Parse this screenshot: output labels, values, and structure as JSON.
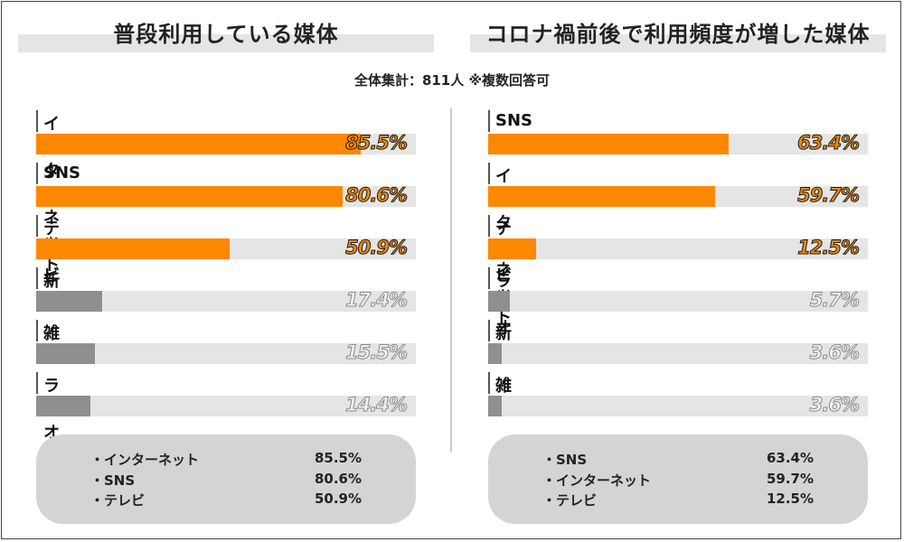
{
  "subtitle": "全体集計：811人 ※複数回答可",
  "colors": {
    "highlight": "#fc8700",
    "muted": "#8f8f8f",
    "track": "#e5e5e5"
  },
  "chart_data": [
    {
      "type": "bar",
      "orientation": "horizontal",
      "title": "普段利用している媒体",
      "xlim": [
        0,
        100
      ],
      "unit": "%",
      "categories": [
        "インターネット",
        "SNS",
        "テレビ",
        "新聞",
        "雑誌",
        "ラジオ"
      ],
      "values": [
        85.5,
        80.6,
        50.9,
        17.4,
        15.5,
        14.4
      ],
      "value_labels": [
        "85.5%",
        "80.6%",
        "50.9%",
        "17.4%",
        "15.5%",
        "14.4%"
      ],
      "highlight_top": 3
    },
    {
      "type": "bar",
      "orientation": "horizontal",
      "title": "コロナ禍前後で利用頻度が増した媒体",
      "xlim": [
        0,
        100
      ],
      "unit": "%",
      "categories": [
        "SNS",
        "インターネット",
        "テレビ",
        "ラジオ",
        "新聞",
        "雑誌"
      ],
      "values": [
        63.4,
        59.7,
        12.5,
        5.7,
        3.6,
        3.6
      ],
      "value_labels": [
        "63.4%",
        "59.7%",
        "12.5%",
        "5.7%",
        "3.6%",
        "3.6%"
      ],
      "highlight_top": 3
    }
  ],
  "summaries": [
    {
      "rows": [
        {
          "name": "・インターネット",
          "value": "85.5%"
        },
        {
          "name": "・SNS",
          "value": "80.6%"
        },
        {
          "name": "・テレビ",
          "value": "50.9%"
        }
      ]
    },
    {
      "rows": [
        {
          "name": "・SNS",
          "value": "63.4%"
        },
        {
          "name": "・インターネット",
          "value": "59.7%"
        },
        {
          "name": "・テレビ",
          "value": "12.5%"
        }
      ]
    }
  ]
}
